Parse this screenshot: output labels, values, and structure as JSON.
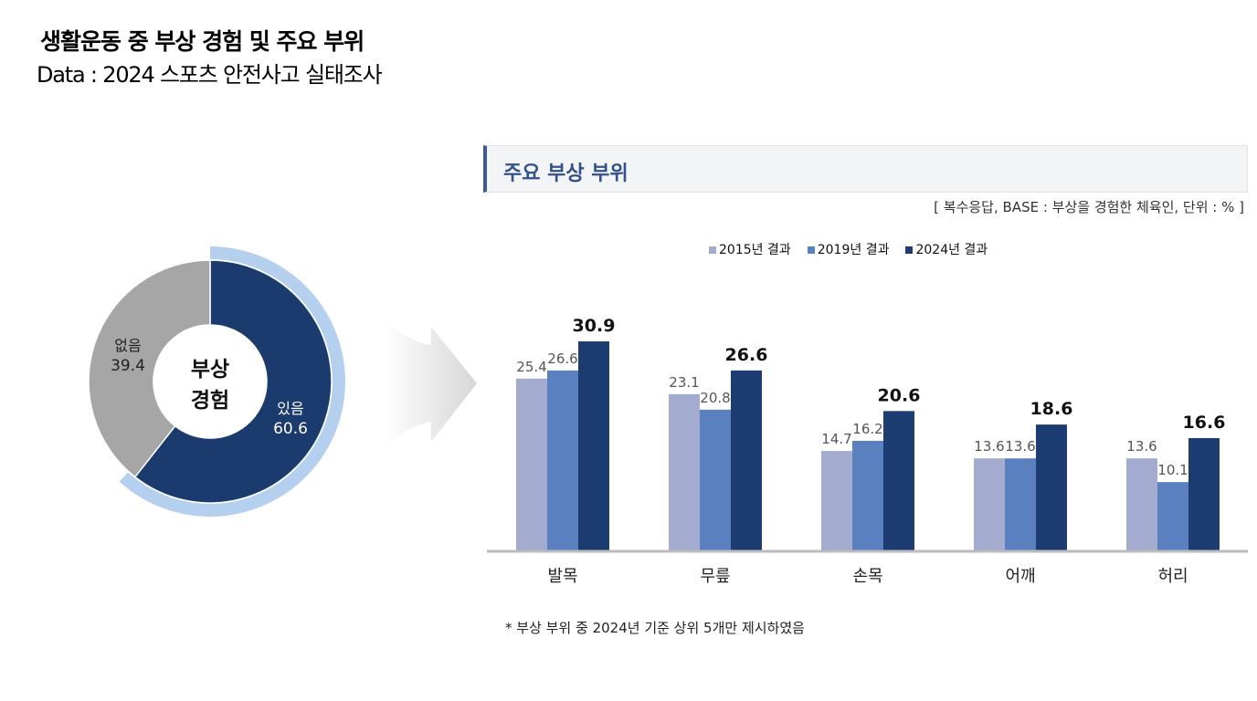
{
  "header": {
    "title": "생활운동 중 부상 경험 및 주요 부위",
    "subtitle": "Data : 2024 스포츠 안전사고 실태조사"
  },
  "donut": {
    "center_label_1": "부상",
    "center_label_2": "경험",
    "slices": [
      {
        "label": "있음",
        "value": 60.6,
        "display": "60.6",
        "color": "#1b3a6e"
      },
      {
        "label": "없음",
        "value": 39.4,
        "display": "39.4",
        "color": "#a6a6a6"
      }
    ],
    "highlight_color": "#b4d0ee"
  },
  "chart_data": {
    "type": "bar",
    "title": "주요 부상 부위",
    "note": "[ 복수응답, BASE : 부상을 경험한 체육인, 단위 : % ]",
    "categories": [
      "발목",
      "무릎",
      "손목",
      "어깨",
      "허리"
    ],
    "series": [
      {
        "name": "2015년 결과",
        "color": "#a3acce",
        "values": [
          25.4,
          23.1,
          14.7,
          13.6,
          13.6
        ]
      },
      {
        "name": "2019년 결과",
        "color": "#5b80c0",
        "values": [
          26.6,
          20.8,
          16.2,
          13.6,
          10.1
        ]
      },
      {
        "name": "2024년 결과",
        "color": "#1c3c72",
        "values": [
          30.9,
          26.6,
          20.6,
          18.6,
          16.6
        ]
      }
    ],
    "ylim": [
      0,
      35
    ],
    "legend_position": "top-center",
    "grid": false,
    "footnote": "* 부상 부위 중 2024년 기준 상위 5개만 제시하였음"
  }
}
